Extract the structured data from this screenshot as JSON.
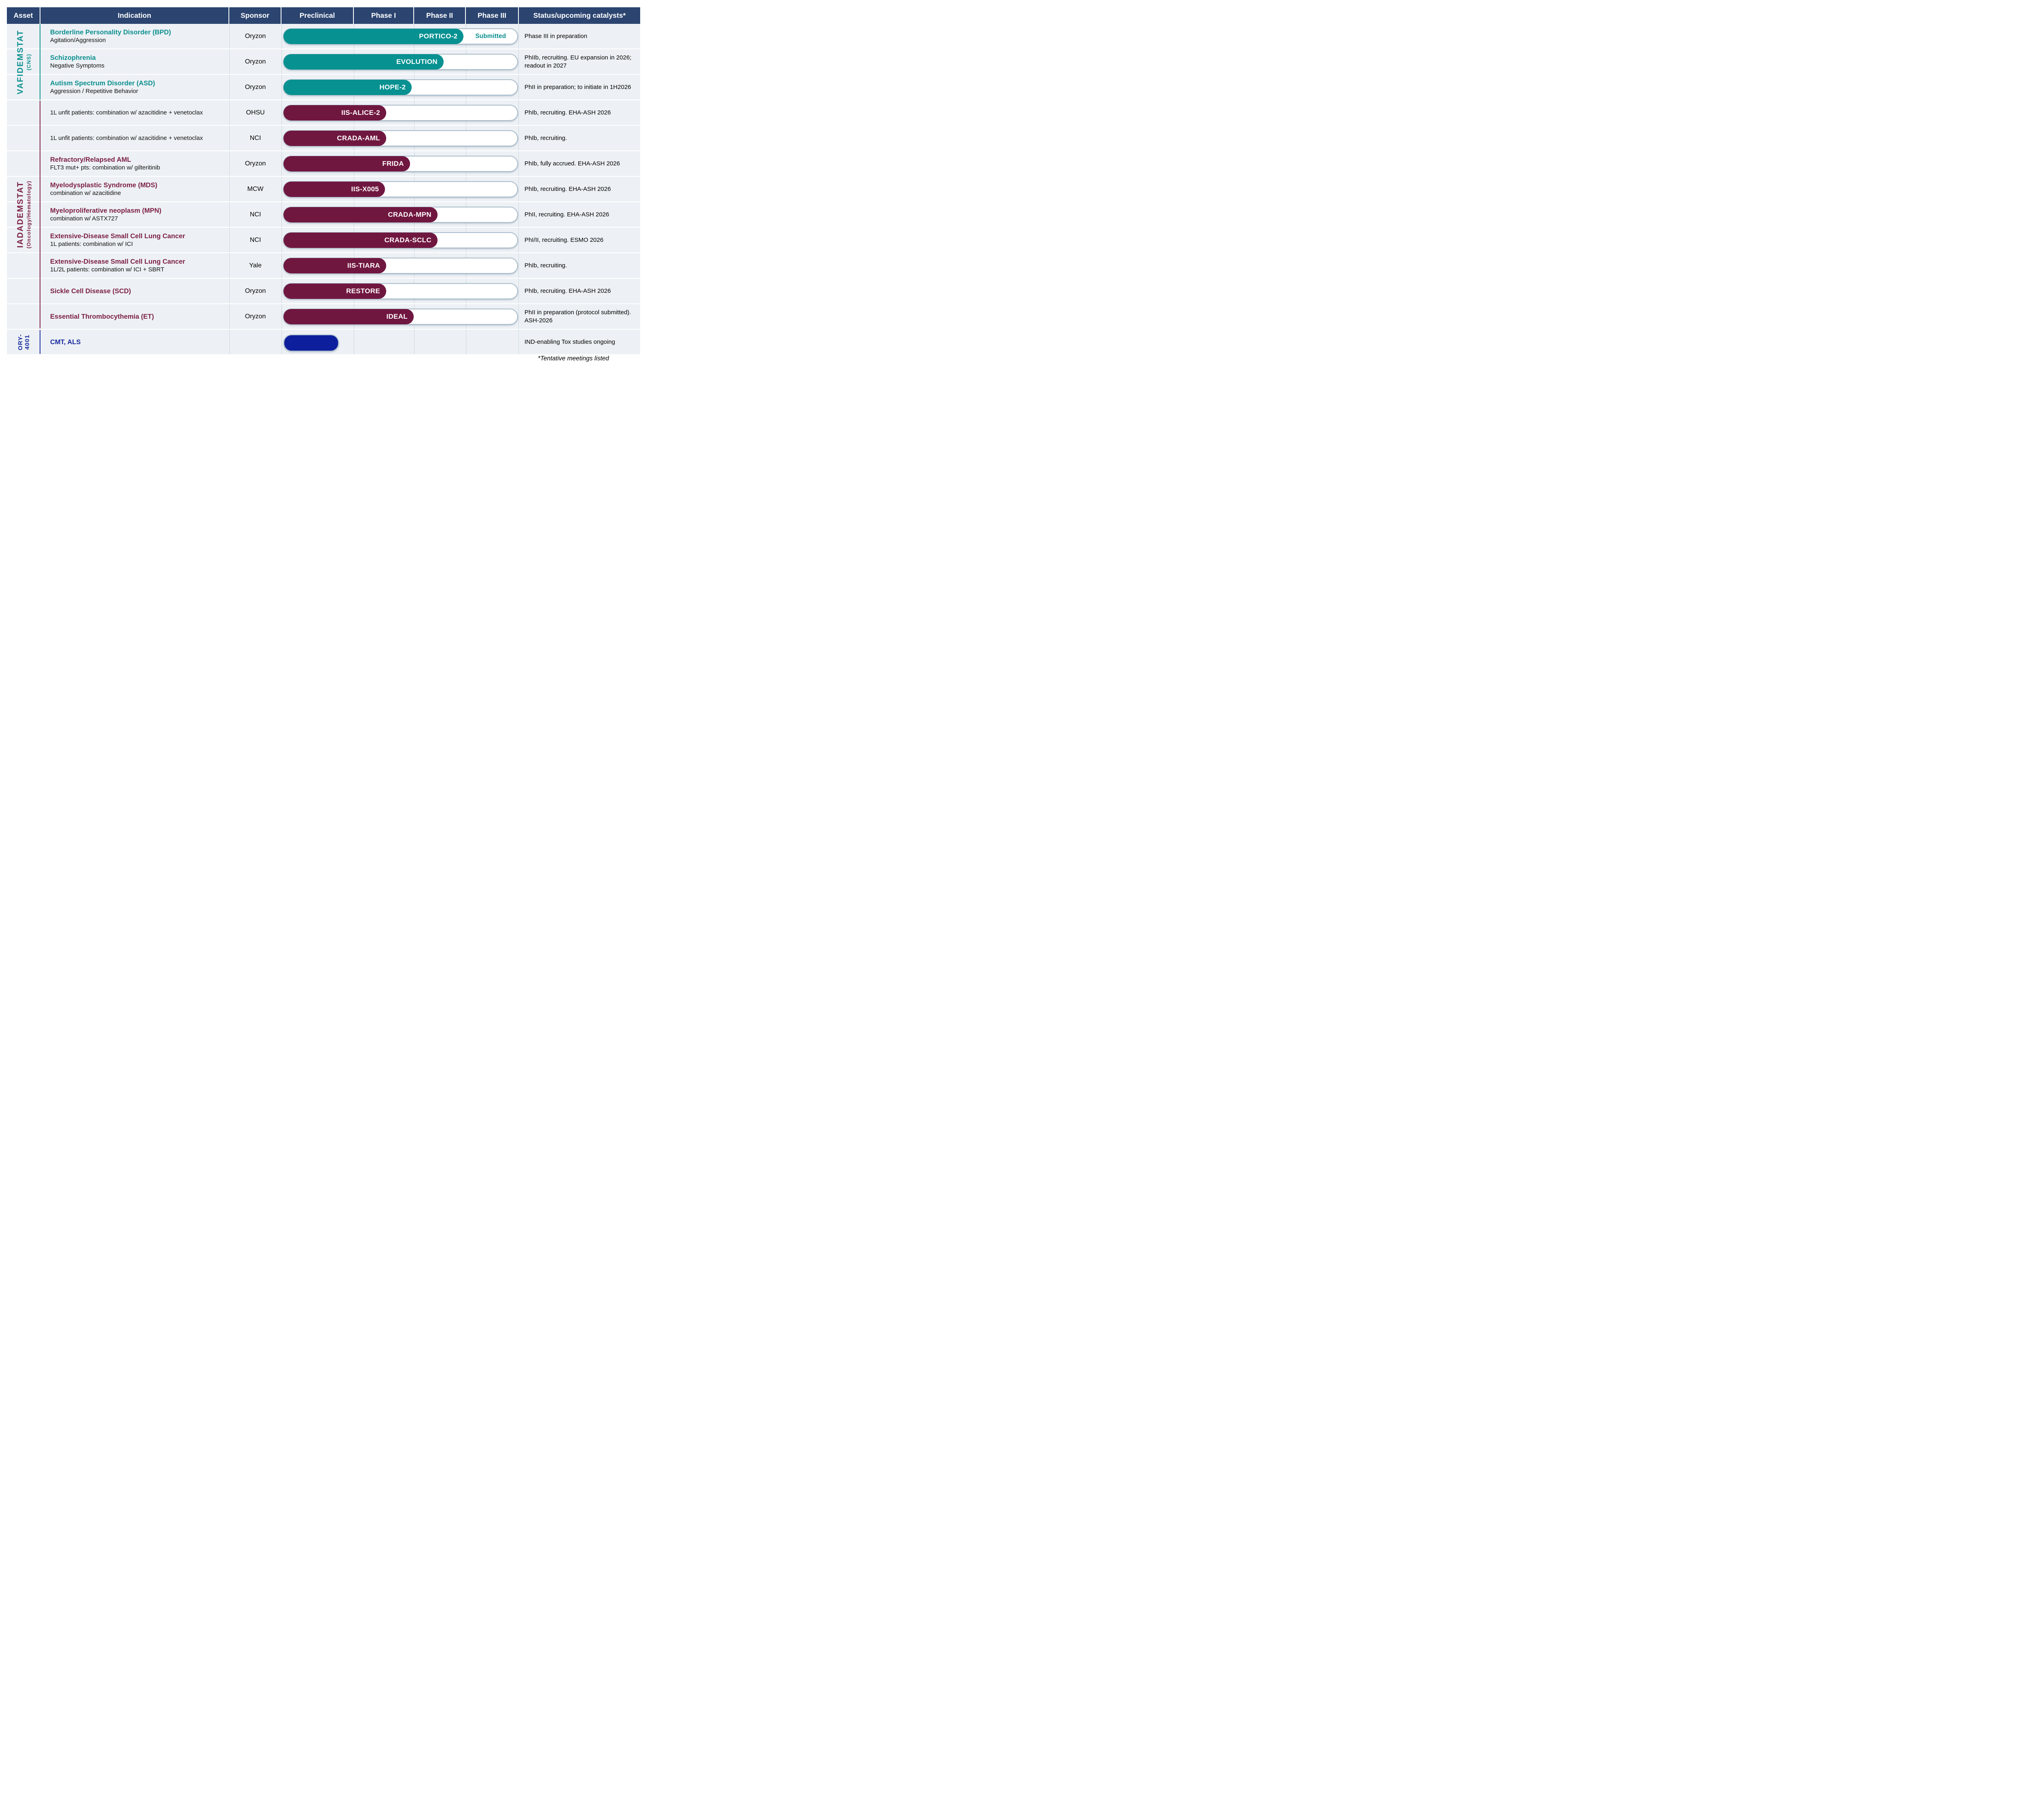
{
  "header": {
    "columns": [
      "Asset",
      "Indication",
      "Sponsor",
      "Preclinical",
      "Phase I",
      "Phase II",
      "Phase III",
      "Status/upcoming catalysts*"
    ]
  },
  "groups": [
    {
      "asset": "VAFIDEMSTAT",
      "subtitle": "(CNS)"
    },
    {
      "asset": "IADADEMSTAT",
      "subtitle": "(Oncology/Hematology)"
    },
    {
      "asset": "ORY-4001",
      "subtitle": ""
    }
  ],
  "colors": {
    "teal": "#089191",
    "maroon": "#701740",
    "blue": "#0E1F9E",
    "teal_text": "#0D8F8F",
    "maroon_text": "#7C1F47",
    "blue_text": "#18299E",
    "header_bg": "#2B4470",
    "row_bg": "#EDF1F5",
    "track_border": "#A9BCCB"
  },
  "rows": [
    {
      "group": 0,
      "title": "Borderline Personality Disorder (BPD)",
      "sub": "Agitation/Aggression",
      "sponsor": "Oryzon",
      "trial": "PORTICO-2",
      "color": "teal",
      "fill_pct": 77.2,
      "track": true,
      "extra": "Submitted",
      "status": "Phase III in preparation"
    },
    {
      "group": 0,
      "title": "Schizophrenia",
      "sub": "Negative Symptoms",
      "sponsor": "Oryzon",
      "trial": "EVOLUTION",
      "color": "teal",
      "fill_pct": 68.6,
      "track": true,
      "extra": "",
      "status": "PhIIb, recruiting. EU expansion in 2026; readout in 2027"
    },
    {
      "group": 0,
      "title": "Autism Spectrum Disorder (ASD)",
      "sub": "Aggression / Repetitive Behavior",
      "sponsor": "Oryzon",
      "trial": "HOPE-2",
      "color": "teal",
      "fill_pct": 55.0,
      "track": true,
      "extra": "",
      "status": "PhII in preparation; to initiate in 1H2026"
    },
    {
      "group": 1,
      "title": "",
      "sub": "1L unfit patients: combination w/ azacitidine + venetoclax",
      "sponsor": "OHSU",
      "trial": "IIS-ALICE-2",
      "color": "maroon",
      "fill_pct": 44.0,
      "track": true,
      "extra": "",
      "status": "PhIb, recruiting. EHA-ASH 2026"
    },
    {
      "group": 1,
      "title": "",
      "sub": "1L unfit patients: combination w/ azacitidine + venetoclax",
      "sponsor": "NCI",
      "trial": "CRADA-AML",
      "color": "maroon",
      "fill_pct": 44.0,
      "track": true,
      "extra": "",
      "status": "PhIb, recruiting."
    },
    {
      "group": 1,
      "title": "Refractory/Relapsed AML",
      "sub": "FLT3 mut+ pts: combination w/ gilteritinib",
      "sponsor": "Oryzon",
      "trial": "FRIDA",
      "color": "maroon",
      "fill_pct": 54.2,
      "track": true,
      "extra": "",
      "status": "PhIb, fully accrued. EHA-ASH 2026"
    },
    {
      "group": 1,
      "title": "Myelodysplastic Syndrome (MDS)",
      "sub": "combination w/ azacitidine",
      "sponsor": "MCW",
      "trial": "IIS-X005",
      "color": "maroon",
      "fill_pct": 43.5,
      "track": true,
      "extra": "",
      "status": "PhIb, recruiting. EHA-ASH 2026"
    },
    {
      "group": 1,
      "title": "Myeloproliferative neoplasm (MPN)",
      "sub": "combination w/ ASTX727",
      "sponsor": "NCI",
      "trial": "CRADA-MPN",
      "color": "maroon",
      "fill_pct": 66.0,
      "track": true,
      "extra": "",
      "status": "PhII, recruiting. EHA-ASH 2026"
    },
    {
      "group": 1,
      "title": "Extensive-Disease Small Cell Lung Cancer",
      "sub": "1L patients: combination w/ ICI",
      "sponsor": "NCI",
      "trial": "CRADA-SCLC",
      "color": "maroon",
      "fill_pct": 66.0,
      "track": true,
      "extra": "",
      "status": "PhI/II, recruiting. ESMO 2026"
    },
    {
      "group": 1,
      "title": "Extensive-Disease Small Cell Lung Cancer",
      "sub": "1L/2L patients: combination w/ ICI + SBRT",
      "sponsor": "Yale",
      "trial": "IIS-TIARA",
      "color": "maroon",
      "fill_pct": 44.0,
      "track": true,
      "extra": "",
      "status": "PhIb, recruiting."
    },
    {
      "group": 1,
      "title": "Sickle Cell Disease (SCD)",
      "sub": "",
      "sponsor": "Oryzon",
      "trial": "RESTORE",
      "color": "maroon",
      "fill_pct": 44.0,
      "track": true,
      "extra": "",
      "status": "PhIb, recruiting. EHA-ASH 2026"
    },
    {
      "group": 1,
      "title": "Essential Thrombocythemia (ET)",
      "sub": "",
      "sponsor": "Oryzon",
      "trial": "IDEAL",
      "color": "maroon",
      "fill_pct": 55.8,
      "track": true,
      "extra": "",
      "status": "PhII in preparation (protocol submitted). ASH-2026"
    },
    {
      "group": 2,
      "title": "CMT, ALS",
      "sub": "",
      "sponsor": "",
      "trial": "",
      "color": "blue",
      "fill_pct": 23.1,
      "track": false,
      "extra": "",
      "status": "IND-enabling Tox studies ongoing"
    }
  ],
  "footnote": "*Tentative meetings listed"
}
